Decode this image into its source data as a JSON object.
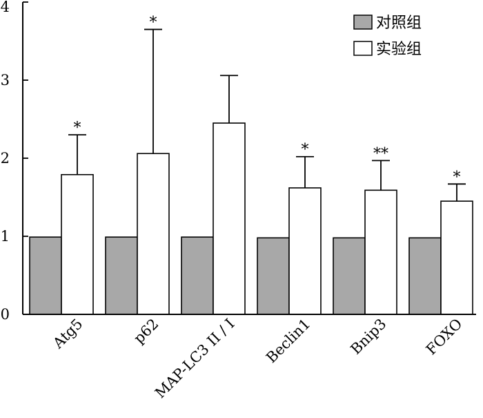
{
  "chart_data": {
    "type": "bar",
    "title": "",
    "xlabel": "",
    "ylabel": "",
    "ylim": [
      0,
      4
    ],
    "yticks": [
      "0",
      "1",
      "2",
      "3",
      "4"
    ],
    "categories": [
      "Atg5",
      "p62",
      "MAP-LC3 II / I",
      "Beclin1",
      "Bnip3",
      "FOXO"
    ],
    "legend_position": "top-right",
    "series": [
      {
        "name": "对照组",
        "color": "#a8a8a8",
        "values": [
          0.99,
          0.99,
          0.99,
          0.98,
          0.98,
          0.98
        ],
        "errors": [
          0,
          0,
          0,
          0,
          0,
          0
        ],
        "significance": [
          "",
          "",
          "",
          "",
          "",
          ""
        ]
      },
      {
        "name": "实验组",
        "color": "#ffffff",
        "values": [
          1.79,
          2.06,
          2.45,
          1.62,
          1.59,
          1.45
        ],
        "errors": [
          0.51,
          1.59,
          0.61,
          0.4,
          0.38,
          0.22
        ],
        "significance": [
          "*",
          "*",
          "",
          "*",
          "**",
          "*"
        ]
      }
    ]
  }
}
